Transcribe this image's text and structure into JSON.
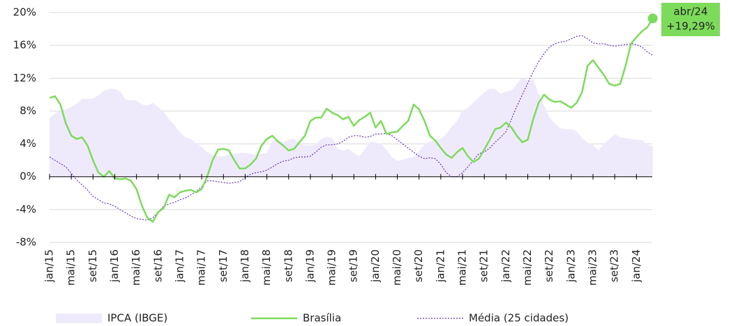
{
  "chart_data": {
    "type": "line",
    "categories": [
      "jan/15",
      null,
      null,
      null,
      "mai/15",
      null,
      null,
      null,
      "set/15",
      null,
      null,
      null,
      "jan/16",
      null,
      null,
      null,
      "mai/16",
      null,
      null,
      null,
      "set/16",
      null,
      null,
      null,
      "jan/17",
      null,
      null,
      null,
      "mai/17",
      null,
      null,
      null,
      "set/17",
      null,
      null,
      null,
      "jan/18",
      null,
      null,
      null,
      "mai/18",
      null,
      null,
      null,
      "set/18",
      null,
      null,
      null,
      "jan/19",
      null,
      null,
      null,
      "mai/19",
      null,
      null,
      null,
      "set/19",
      null,
      null,
      null,
      "jan/20",
      null,
      null,
      null,
      "mai/20",
      null,
      null,
      null,
      "set/20",
      null,
      null,
      null,
      "jan/21",
      null,
      null,
      null,
      "mai/21",
      null,
      null,
      null,
      "set/21",
      null,
      null,
      null,
      "jan/22",
      null,
      null,
      null,
      "mai/22",
      null,
      null,
      null,
      "set/22",
      null,
      null,
      null,
      "jan/23",
      null,
      null,
      null,
      "mai/23",
      null,
      null,
      null,
      "set/23",
      null,
      null,
      null,
      "jan/24",
      null,
      null,
      null
    ],
    "series": [
      {
        "name": "IPCA (IBGE)",
        "kind": "area",
        "color": "#efeafb",
        "values": [
          7.1,
          7.7,
          8.1,
          8.2,
          8.5,
          8.9,
          9.5,
          9.5,
          9.5,
          9.9,
          10.5,
          10.7,
          10.7,
          10.4,
          9.4,
          9.3,
          9.3,
          8.8,
          8.7,
          9.0,
          8.5,
          7.9,
          7.0,
          6.3,
          5.4,
          4.8,
          4.6,
          4.1,
          3.6,
          3.0,
          2.7,
          2.5,
          2.5,
          2.7,
          2.8,
          2.9,
          2.9,
          2.8,
          2.7,
          2.8,
          2.9,
          4.4,
          4.5,
          4.2,
          4.5,
          4.6,
          4.0,
          3.8,
          3.8,
          3.9,
          4.6,
          4.9,
          4.7,
          3.4,
          3.2,
          3.4,
          2.9,
          2.5,
          3.3,
          4.3,
          4.2,
          4.0,
          3.3,
          2.4,
          1.9,
          2.1,
          2.3,
          2.4,
          3.1,
          3.9,
          4.3,
          4.5,
          4.6,
          5.2,
          6.1,
          6.8,
          8.1,
          8.4,
          9.0,
          9.7,
          10.3,
          10.7,
          10.7,
          10.1,
          10.4,
          10.5,
          11.3,
          12.1,
          11.7,
          11.9,
          10.1,
          8.7,
          7.2,
          6.5,
          5.9,
          5.8,
          5.8,
          5.6,
          4.7,
          4.2,
          3.9,
          3.2,
          4.0,
          4.6,
          5.2,
          4.8,
          4.7,
          4.6,
          4.5,
          4.5,
          3.9,
          3.7
        ]
      },
      {
        "name": "Brasília",
        "kind": "line",
        "color": "#7ddb5b",
        "values": [
          9.6,
          9.8,
          8.8,
          6.5,
          5.0,
          4.6,
          4.8,
          3.8,
          2.0,
          0.5,
          0.0,
          0.7,
          -0.2,
          -0.3,
          -0.2,
          -0.5,
          -1.5,
          -3.5,
          -5.0,
          -5.5,
          -4.3,
          -3.8,
          -2.2,
          -2.5,
          -1.9,
          -1.7,
          -1.6,
          -1.9,
          -1.5,
          0.0,
          2.0,
          3.3,
          3.4,
          3.2,
          2.0,
          1.0,
          1.0,
          1.5,
          2.2,
          3.8,
          4.6,
          5.0,
          4.3,
          3.8,
          3.2,
          3.4,
          4.2,
          5.0,
          6.8,
          7.2,
          7.2,
          8.3,
          7.8,
          7.5,
          7.0,
          7.3,
          6.2,
          6.9,
          7.3,
          7.8,
          6.0,
          6.8,
          5.2,
          5.4,
          5.5,
          6.2,
          6.8,
          8.8,
          8.2,
          6.8,
          5.0,
          4.4,
          3.5,
          2.7,
          2.3,
          3.0,
          3.5,
          2.5,
          1.8,
          2.2,
          3.3,
          4.5,
          5.8,
          6.0,
          6.6,
          6.0,
          5.0,
          4.2,
          4.5,
          7.0,
          9.0,
          10.0,
          9.4,
          9.1,
          9.2,
          8.8,
          8.4,
          9.0,
          10.3,
          13.5,
          14.2,
          13.3,
          12.4,
          11.3,
          11.1,
          11.3,
          13.5,
          16.2,
          17.0,
          17.7,
          18.2,
          19.29
        ]
      },
      {
        "name": "Média (25 cidades)",
        "kind": "dotted",
        "color": "#6a2fc0",
        "values": [
          2.4,
          2.0,
          1.6,
          1.2,
          0.4,
          -0.4,
          -1.0,
          -1.6,
          -2.4,
          -2.8,
          -3.2,
          -3.3,
          -3.6,
          -4.0,
          -4.4,
          -4.8,
          -5.1,
          -5.2,
          -5.3,
          -5.0,
          -4.3,
          -3.6,
          -3.3,
          -3.1,
          -2.8,
          -2.6,
          -2.2,
          -1.8,
          -1.2,
          -0.5,
          -0.5,
          -0.6,
          -0.7,
          -0.8,
          -0.7,
          -0.6,
          -0.1,
          0.3,
          0.5,
          0.6,
          0.8,
          1.2,
          1.6,
          1.9,
          2.0,
          2.3,
          2.4,
          2.4,
          2.5,
          3.0,
          3.6,
          3.9,
          3.9,
          4.0,
          4.3,
          4.8,
          5.0,
          5.0,
          4.8,
          4.9,
          5.2,
          5.2,
          5.3,
          5.0,
          4.5,
          4.0,
          3.5,
          3.0,
          2.5,
          2.2,
          2.3,
          2.2,
          1.5,
          0.5,
          0.0,
          0.0,
          0.5,
          1.2,
          2.0,
          2.8,
          3.0,
          3.5,
          4.2,
          4.8,
          5.5,
          7.0,
          8.6,
          10.0,
          11.4,
          12.8,
          14.0,
          15.0,
          15.8,
          16.2,
          16.4,
          16.5,
          16.8,
          17.1,
          17.2,
          16.8,
          16.3,
          16.2,
          16.2,
          16.0,
          15.9,
          16.0,
          16.1,
          16.2,
          16.1,
          15.8,
          15.2,
          14.8
        ]
      }
    ],
    "ylim": [
      -8,
      20
    ],
    "yticks": [
      {
        "value": -8,
        "label": "-8%"
      },
      {
        "value": -4,
        "label": "-4%"
      },
      {
        "value": 0,
        "label": "0%"
      },
      {
        "value": 4,
        "label": "4%"
      },
      {
        "value": 8,
        "label": "8%"
      },
      {
        "value": 12,
        "label": "12%"
      },
      {
        "value": 16,
        "label": "16%"
      },
      {
        "value": 20,
        "label": "20%"
      }
    ],
    "grid": true,
    "legend": "bottom",
    "annotation": {
      "date": "abr/24",
      "text": "+19,29%",
      "color": "#7ddb5b"
    }
  }
}
